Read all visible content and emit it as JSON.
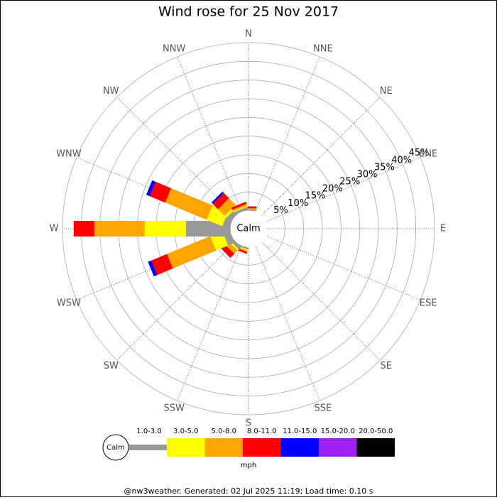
{
  "chart_data": {
    "type": "windrose",
    "title": "Wind rose for 25 Nov 2017",
    "categories": [
      "N",
      "NNE",
      "NE",
      "ENE",
      "E",
      "ESE",
      "SE",
      "SSE",
      "S",
      "SSW",
      "SW",
      "WSW",
      "W",
      "WNW",
      "NW",
      "NNW"
    ],
    "series": [
      {
        "name": "1.0-3.0",
        "color": "#999999",
        "values": [
          0.3,
          0,
          0,
          0,
          0,
          0,
          0,
          0,
          0,
          0.5,
          1,
          2,
          12,
          2,
          1.5,
          0.8
        ]
      },
      {
        "name": "3.0-5.0",
        "color": "#ffff00",
        "values": [
          0,
          0,
          0,
          0,
          0,
          0,
          0,
          0,
          0,
          0.3,
          0.5,
          3.5,
          11,
          4.5,
          0.7,
          0.3
        ]
      },
      {
        "name": "5.0-8.0",
        "color": "#ffa500",
        "values": [
          0.4,
          0,
          0,
          0,
          0,
          0,
          0,
          0,
          0,
          0.4,
          1.2,
          12.5,
          13.5,
          12,
          2.5,
          0.5
        ]
      },
      {
        "name": "8.0-11.0",
        "color": "#ff0000",
        "values": [
          0.5,
          0,
          0,
          0,
          0,
          0,
          0,
          0,
          0,
          0.5,
          1.5,
          4.5,
          5.5,
          4.5,
          2,
          0.6
        ]
      },
      {
        "name": "11.0-15.0",
        "color": "#0000ff",
        "values": [
          0,
          0,
          0,
          0,
          0,
          0,
          0,
          0,
          0,
          0,
          0,
          1,
          0,
          1,
          0.5,
          0
        ]
      },
      {
        "name": "15.0-20.0",
        "color": "#a020f0",
        "values": [
          0,
          0,
          0,
          0,
          0,
          0,
          0,
          0,
          0,
          0,
          0,
          0,
          0,
          0,
          0,
          0
        ]
      },
      {
        "name": "20.0-50.0",
        "color": "#000000",
        "values": [
          0,
          0,
          0,
          0,
          0,
          0,
          0,
          0,
          0,
          0,
          0,
          0,
          0,
          0,
          0,
          0
        ]
      }
    ],
    "rlim": [
      0,
      45
    ],
    "rticks": [
      {
        "value": 5,
        "label": "5%"
      },
      {
        "value": 10,
        "label": "10%"
      },
      {
        "value": 15,
        "label": "15%"
      },
      {
        "value": 20,
        "label": "20%"
      },
      {
        "value": 25,
        "label": "25%"
      },
      {
        "value": 30,
        "label": "30%"
      },
      {
        "value": 35,
        "label": "35%"
      },
      {
        "value": 40,
        "label": "40%"
      },
      {
        "value": 45,
        "label": "45%"
      }
    ],
    "calm_label": "Calm",
    "unit_label": "mph",
    "footer": "@nw3weather. Generated: 02 Jul 2025 11:19; Load time: 0.10 s"
  }
}
